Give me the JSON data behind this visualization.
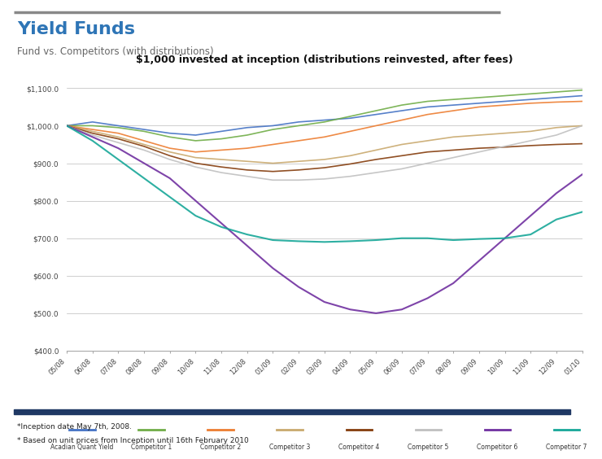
{
  "title": "$1,000 invested at inception (distributions reinvested, after fees)",
  "header_title": "Yield Funds",
  "header_subtitle": "Fund vs. Competitors (with distributions)",
  "ylim": [
    400,
    1150
  ],
  "yticks": [
    400,
    500,
    600,
    700,
    800,
    900,
    1000,
    1100
  ],
  "ytick_labels": [
    "$400.0",
    "$500.0",
    "$600.0",
    "$700.0",
    "$800.0",
    "$900.0",
    "$1,000.0",
    "$1,100.0"
  ],
  "footnote1": "*Inception date May 7th, 2008.",
  "footnote2": "* Based on unit prices from Inception until 16th February 2010",
  "bg_color": "#ffffff",
  "header_bar_color": "#888888",
  "footer_bar_color": "#1f3864",
  "series_colors": [
    "#4472c4",
    "#70ad47",
    "#ed7d31",
    "#c9a96e",
    "#843c0c",
    "#c0c0c0",
    "#7030a0",
    "#17a798"
  ],
  "n_points": 21,
  "xtick_labels": [
    "05/08",
    "06/08",
    "07/08",
    "08/08",
    "09/08",
    "10/08",
    "11/08",
    "12/08",
    "01/09",
    "02/09",
    "03/09",
    "04/09",
    "05/09",
    "06/09",
    "07/09",
    "08/09",
    "09/09",
    "10/09",
    "11/09",
    "12/09",
    "01/10"
  ],
  "legend_labels": [
    "Acadian Quant Yield",
    "Competitor 1",
    "Competitor 2",
    "Competitor 3",
    "Competitor 4",
    "Competitor 5",
    "Competitor 6",
    "Competitor 7"
  ]
}
